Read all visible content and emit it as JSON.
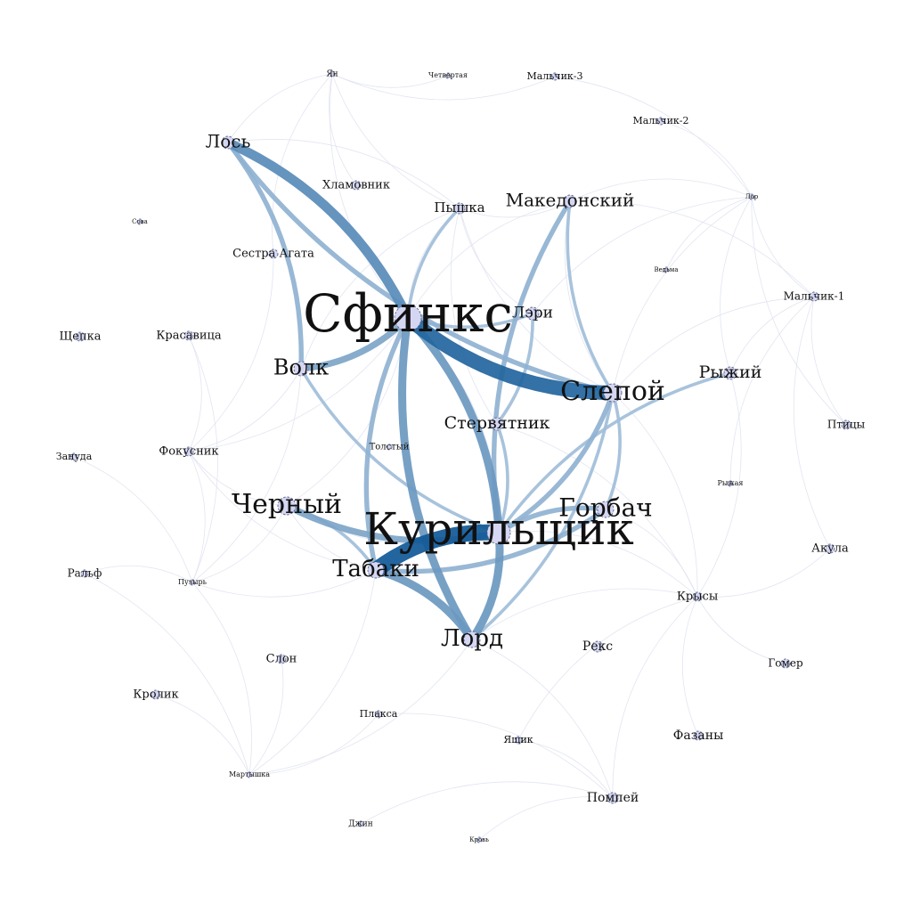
{
  "graph": {
    "nodes": [
      {
        "id": "sphinx",
        "label": "Сфинкс"
      },
      {
        "id": "smoker",
        "label": "Курильщик"
      },
      {
        "id": "blind",
        "label": "Слепой"
      },
      {
        "id": "tabaki",
        "label": "Табаки"
      },
      {
        "id": "humpback",
        "label": "Горбач"
      },
      {
        "id": "black",
        "label": "Черный"
      },
      {
        "id": "lord",
        "label": "Лорд"
      },
      {
        "id": "wolf",
        "label": "Волк"
      },
      {
        "id": "moose",
        "label": "Лось"
      },
      {
        "id": "macedonian",
        "label": "Македонский"
      },
      {
        "id": "vulture",
        "label": "Стервятник"
      },
      {
        "id": "red",
        "label": "Рыжий"
      },
      {
        "id": "lary",
        "label": "Лэри"
      },
      {
        "id": "pyshka",
        "label": "Пышка"
      },
      {
        "id": "hlamovnik",
        "label": "Хламовник"
      },
      {
        "id": "agata",
        "label": "Сестра Агата"
      },
      {
        "id": "beauty",
        "label": "Красавица"
      },
      {
        "id": "magician",
        "label": "Фокусник"
      },
      {
        "id": "chip",
        "label": "Щепка"
      },
      {
        "id": "bore",
        "label": "Зануда"
      },
      {
        "id": "ralph",
        "label": "Ральф"
      },
      {
        "id": "bubble",
        "label": "Пузырь"
      },
      {
        "id": "elephant",
        "label": "Слон"
      },
      {
        "id": "rabbit",
        "label": "Кролик"
      },
      {
        "id": "crybaby",
        "label": "Плакса"
      },
      {
        "id": "monkey",
        "label": "Мартышка"
      },
      {
        "id": "djinn",
        "label": "Джин"
      },
      {
        "id": "blood",
        "label": "Кровь"
      },
      {
        "id": "box",
        "label": "Ящик"
      },
      {
        "id": "pompey",
        "label": "Помпей"
      },
      {
        "id": "pheasants",
        "label": "Фазаны"
      },
      {
        "id": "homer",
        "label": "Гомер"
      },
      {
        "id": "shark",
        "label": "Акула"
      },
      {
        "id": "rats",
        "label": "Крысы"
      },
      {
        "id": "rex",
        "label": "Рекс"
      },
      {
        "id": "redgirl",
        "label": "Рыжая"
      },
      {
        "id": "birds",
        "label": "Птицы"
      },
      {
        "id": "boy1",
        "label": "Мальчик-1"
      },
      {
        "id": "boy2",
        "label": "Мальчик-2"
      },
      {
        "id": "boy3",
        "label": "Мальчик-3"
      },
      {
        "id": "fourth",
        "label": "Четвертая"
      },
      {
        "id": "yan",
        "label": "Ян"
      },
      {
        "id": "sova",
        "label": "Сова"
      },
      {
        "id": "fat",
        "label": "Толстый"
      },
      {
        "id": "vedma",
        "label": "Ведьма"
      },
      {
        "id": "lor",
        "label": "Лор"
      }
    ],
    "edges": [
      {
        "source": "tabaki",
        "target": "smoker",
        "weight": 10
      },
      {
        "source": "sphinx",
        "target": "blind",
        "weight": 9
      },
      {
        "source": "moose",
        "target": "sphinx",
        "weight": 6
      },
      {
        "source": "sphinx",
        "target": "smoker",
        "weight": 5
      },
      {
        "source": "sphinx",
        "target": "lord",
        "weight": 5
      },
      {
        "source": "tabaki",
        "target": "lord",
        "weight": 5
      },
      {
        "source": "lord",
        "target": "smoker",
        "weight": 5
      },
      {
        "source": "sphinx",
        "target": "wolf",
        "weight": 4
      },
      {
        "source": "black",
        "target": "smoker",
        "weight": 4
      },
      {
        "source": "smoker",
        "target": "blind",
        "weight": 3
      },
      {
        "source": "smoker",
        "target": "humpback",
        "weight": 3
      },
      {
        "source": "moose",
        "target": "blind",
        "weight": 3
      },
      {
        "source": "moose",
        "target": "wolf",
        "weight": 3
      },
      {
        "source": "tabaki",
        "target": "humpback",
        "weight": 3
      },
      {
        "source": "smoker",
        "target": "macedonian",
        "weight": 3
      },
      {
        "source": "sphinx",
        "target": "tabaki",
        "weight": 3
      },
      {
        "source": "sphinx",
        "target": "lary",
        "weight": 2
      },
      {
        "source": "blind",
        "target": "lord",
        "weight": 2
      },
      {
        "source": "smoker",
        "target": "vulture",
        "weight": 2
      },
      {
        "source": "blind",
        "target": "macedonian",
        "weight": 2
      },
      {
        "source": "humpback",
        "target": "blind",
        "weight": 2
      },
      {
        "source": "black",
        "target": "tabaki",
        "weight": 2
      },
      {
        "source": "wolf",
        "target": "smoker",
        "weight": 2
      },
      {
        "source": "sphinx",
        "target": "pyshka",
        "weight": 2
      },
      {
        "source": "vulture",
        "target": "lary",
        "weight": 2
      },
      {
        "source": "smoker",
        "target": "red",
        "weight": 2
      }
    ]
  }
}
